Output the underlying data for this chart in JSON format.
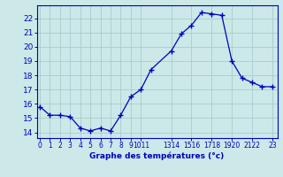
{
  "hours": [
    0,
    1,
    2,
    3,
    4,
    5,
    6,
    7,
    8,
    9,
    10,
    11,
    13,
    14,
    15,
    16,
    17,
    18,
    19,
    20,
    21,
    22,
    23
  ],
  "temps": [
    15.8,
    15.2,
    15.2,
    15.1,
    14.3,
    14.1,
    14.3,
    14.1,
    15.2,
    16.5,
    17.0,
    18.4,
    19.7,
    20.9,
    21.5,
    22.4,
    22.3,
    22.2,
    19.0,
    17.8,
    17.5,
    17.2,
    17.2
  ],
  "xlim": [
    -0.3,
    23.5
  ],
  "ylim": [
    13.6,
    22.9
  ],
  "yticks": [
    14,
    15,
    16,
    17,
    18,
    19,
    20,
    21,
    22
  ],
  "xtick_positions": [
    0,
    1,
    2,
    3,
    4,
    5,
    6,
    7,
    8,
    9,
    10,
    13,
    15,
    17,
    19,
    21,
    23
  ],
  "xtick_labels": [
    "0",
    "1",
    "2",
    "3",
    "4",
    "5",
    "6",
    "7",
    "8",
    "9",
    "1011",
    "1314",
    "1516",
    "1718",
    "1920",
    "2122",
    "23"
  ],
  "xlabel": "Graphe des températures (°c)",
  "line_color": "#0000bb",
  "bg_color": "#cce8e8",
  "grid_color": "#aacccc",
  "font_color": "#0000bb",
  "marker": "+"
}
